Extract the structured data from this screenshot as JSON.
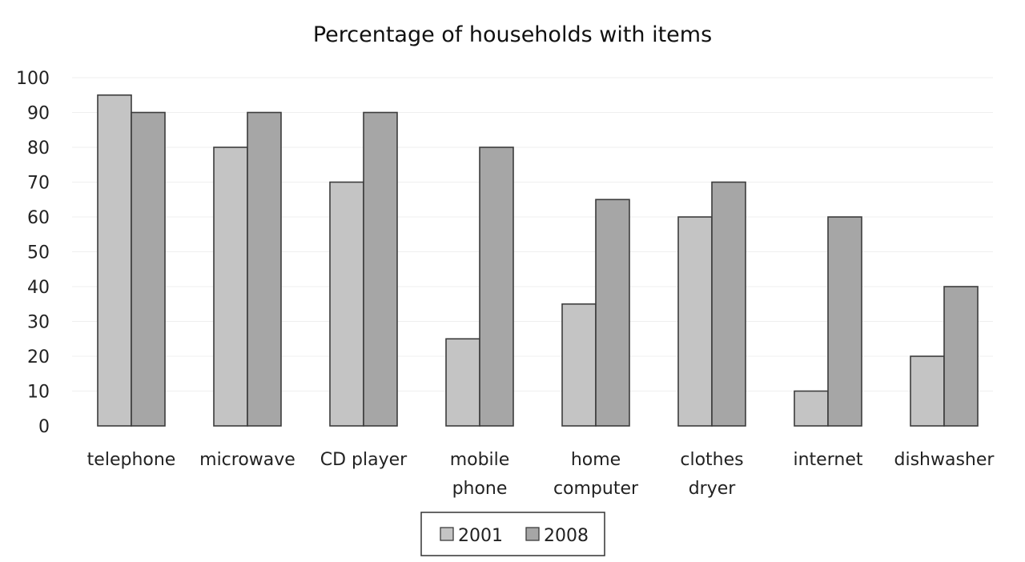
{
  "chart_data": {
    "type": "bar",
    "title": "Percentage of households with items",
    "xlabel": "",
    "ylabel": "",
    "ylim": [
      0,
      100
    ],
    "yticks": [
      "0",
      "10",
      "20",
      "30",
      "40",
      "50",
      "60",
      "70",
      "80",
      "90",
      "100"
    ],
    "categories": [
      [
        "telephone"
      ],
      [
        "microwave"
      ],
      [
        "CD player"
      ],
      [
        "mobile",
        "phone"
      ],
      [
        "home",
        "computer"
      ],
      [
        "clothes",
        "dryer"
      ],
      [
        "internet"
      ],
      [
        "dishwasher"
      ]
    ],
    "series": [
      {
        "name": "2001",
        "color": "#c4c4c4",
        "values": [
          95,
          80,
          70,
          25,
          35,
          60,
          10,
          20
        ]
      },
      {
        "name": "2008",
        "color": "#a6a6a6",
        "values": [
          90,
          90,
          90,
          80,
          65,
          70,
          60,
          40
        ]
      }
    ],
    "grid": true,
    "legend_position": "bottom-center"
  }
}
